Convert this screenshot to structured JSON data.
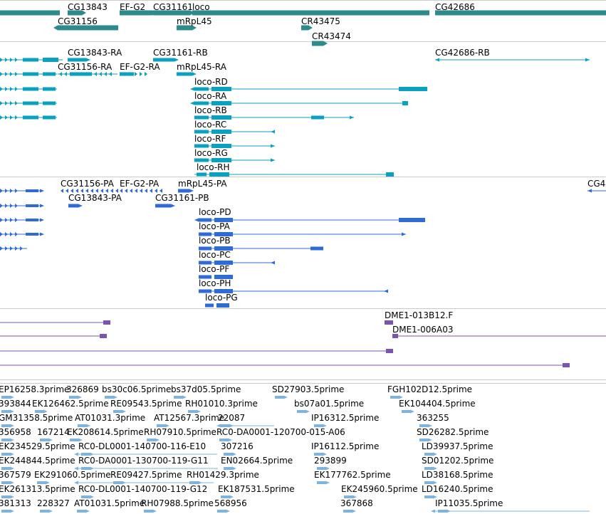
{
  "colors": {
    "gene": "#2e8b8b",
    "transcript": "#0aa0bf",
    "protein": "#2f6bd4",
    "clone": "#7a55b0",
    "est": "#7fb3dd",
    "divider": "#cccccc"
  },
  "tracks": {
    "genes": {
      "items": [
        {
          "label": "CG13843",
          "kind": "gene"
        },
        {
          "label": "EF-G2",
          "kind": "gene"
        },
        {
          "label": "CG31161",
          "kind": "gene"
        },
        {
          "label": "loco",
          "kind": "gene"
        },
        {
          "label": "CG42686",
          "kind": "gene"
        },
        {
          "label": "CG31156",
          "kind": "gene"
        },
        {
          "label": "mRpL45",
          "kind": "gene"
        },
        {
          "label": "CR43475",
          "kind": "gene"
        },
        {
          "label": "CR43474",
          "kind": "gene"
        }
      ]
    },
    "transcripts": {
      "items": [
        {
          "label": "CG13843-RA"
        },
        {
          "label": "CG31161-RB"
        },
        {
          "label": "CG42686-RB"
        },
        {
          "label": "CG31156-RA"
        },
        {
          "label": "EF-G2-RA"
        },
        {
          "label": "mRpL45-RA"
        },
        {
          "label": "loco-RD"
        },
        {
          "label": "loco-RA"
        },
        {
          "label": "loco-RB"
        },
        {
          "label": "loco-RC"
        },
        {
          "label": "loco-RF"
        },
        {
          "label": "loco-RG"
        },
        {
          "label": "loco-RH"
        }
      ]
    },
    "proteins": {
      "items": [
        {
          "label": "CG31156-PA"
        },
        {
          "label": "EF-G2-PA"
        },
        {
          "label": "mRpL45-PA"
        },
        {
          "label": "CG4"
        },
        {
          "label": "CG13843-PA"
        },
        {
          "label": "CG31161-PB"
        },
        {
          "label": "loco-PD"
        },
        {
          "label": "loco-PA"
        },
        {
          "label": "loco-PB"
        },
        {
          "label": "loco-PC"
        },
        {
          "label": "loco-PF"
        },
        {
          "label": "loco-PH"
        },
        {
          "label": "loco-PG"
        }
      ]
    },
    "clones": {
      "items": [
        {
          "label": "DME1-013B12.F"
        },
        {
          "label": "DME1-006A03"
        }
      ]
    },
    "ests": {
      "items": [
        {
          "label": "EP16258.3prime"
        },
        {
          "label": "326869"
        },
        {
          "label": "bs30c06.5prime"
        },
        {
          "label": "bs37d05.5prime"
        },
        {
          "label": "SD27903.5prime"
        },
        {
          "label": "FGH102D12.5prime"
        },
        {
          "label": "393844"
        },
        {
          "label": "EK126462.5prime"
        },
        {
          "label": "RE09543.5prime"
        },
        {
          "label": "RH01010.3prime"
        },
        {
          "label": "bs07a01.5prime"
        },
        {
          "label": "EK104404.5prime"
        },
        {
          "label": "GM31358.5prime"
        },
        {
          "label": "AT01031.3prime"
        },
        {
          "label": "AT12567.3prime"
        },
        {
          "label": "22087"
        },
        {
          "label": "IP16312.5prime"
        },
        {
          "label": "363255"
        },
        {
          "label": "356958"
        },
        {
          "label": "167214"
        },
        {
          "label": "EK208614.5prime"
        },
        {
          "label": "RH07910.5prime"
        },
        {
          "label": "RC0-DA0001-120700-015-A06"
        },
        {
          "label": "SD26282.5prime"
        },
        {
          "label": "EK234529.5prime"
        },
        {
          "label": "RC0-DL0001-140700-116-E10"
        },
        {
          "label": "307216"
        },
        {
          "label": "IP16112.5prime"
        },
        {
          "label": "LD39937.5prime"
        },
        {
          "label": "EK244844.5prime"
        },
        {
          "label": "RC0-DA0001-130700-119-G11"
        },
        {
          "label": "EN02664.5prime"
        },
        {
          "label": "293899"
        },
        {
          "label": "SD01202.5prime"
        },
        {
          "label": "367579"
        },
        {
          "label": "EK291060.5prime"
        },
        {
          "label": "RE09427.5prime"
        },
        {
          "label": "RH01429.3prime"
        },
        {
          "label": "EK177762.5prime"
        },
        {
          "label": "LD38168.5prime"
        },
        {
          "label": "EK261313.5prime"
        },
        {
          "label": "RC0-DL0001-140700-119-G12"
        },
        {
          "label": "EK187531.5prime"
        },
        {
          "label": "EK245960.5prime"
        },
        {
          "label": "LD16240.5prime"
        },
        {
          "label": "381313"
        },
        {
          "label": "228327"
        },
        {
          "label": "AT01031.5prime"
        },
        {
          "label": "RH07988.5prime"
        },
        {
          "label": "568956"
        },
        {
          "label": "367868"
        },
        {
          "label": "IP11035.5prime"
        }
      ]
    }
  }
}
